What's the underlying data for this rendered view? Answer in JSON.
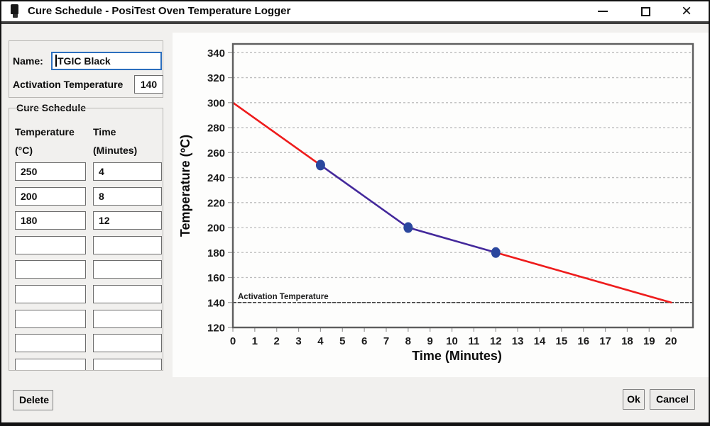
{
  "window": {
    "title": "Cure Schedule - PosiTest Oven Temperature Logger",
    "icons": {
      "app": "usb-probe-device",
      "minimize": "minimize-dash",
      "maximize": "maximize-square",
      "close": "×"
    }
  },
  "form": {
    "name_label": "Name:",
    "name_value": "TGIC Black",
    "activation_label": "Activation Temperature",
    "activation_value": "140"
  },
  "cure_schedule": {
    "group_label": "Cure Schedule",
    "col1_header_line1": "Temperature",
    "col1_header_line2": "(°C)",
    "col2_header_line1": "Time",
    "col2_header_line2": "(Minutes)",
    "rows": [
      {
        "temperature": "250",
        "time": "4"
      },
      {
        "temperature": "200",
        "time": "8"
      },
      {
        "temperature": "180",
        "time": "12"
      },
      {
        "temperature": "",
        "time": ""
      },
      {
        "temperature": "",
        "time": ""
      },
      {
        "temperature": "",
        "time": ""
      },
      {
        "temperature": "",
        "time": ""
      },
      {
        "temperature": "",
        "time": ""
      },
      {
        "temperature": "",
        "time": ""
      }
    ]
  },
  "buttons": {
    "delete": "Delete",
    "ok": "Ok",
    "cancel": "Cancel"
  },
  "chart_data": {
    "type": "line",
    "title": "",
    "xlabel": "Time (Minutes)",
    "ylabel": "Temperature (ºC)",
    "x_ticks": [
      0,
      1,
      2,
      3,
      4,
      5,
      6,
      7,
      8,
      9,
      10,
      11,
      12,
      13,
      14,
      15,
      16,
      17,
      18,
      19,
      20
    ],
    "y_ticks": [
      120,
      140,
      160,
      180,
      200,
      220,
      240,
      260,
      280,
      300,
      320,
      340
    ],
    "xlim": [
      0,
      21
    ],
    "ylim": [
      120,
      347
    ],
    "grid": "horizontal-dashed",
    "line_points": [
      [
        0,
        300
      ],
      [
        4,
        250
      ],
      [
        8,
        200
      ],
      [
        12,
        180
      ],
      [
        20,
        140
      ]
    ],
    "segment_colors": [
      "#ee1c1c",
      "#43289b",
      "#43289b",
      "#ee1c1c"
    ],
    "marker_points": [
      [
        4,
        250
      ],
      [
        8,
        200
      ],
      [
        12,
        180
      ]
    ],
    "marker_color": "#2b479e",
    "activation_line": {
      "value": 140,
      "label": "Activation Temperature",
      "color": "#3c3c3c"
    },
    "colors": {
      "grid": "#bdbdbd",
      "border": "#5e5e5e",
      "tick": "#9a9a9a"
    }
  }
}
